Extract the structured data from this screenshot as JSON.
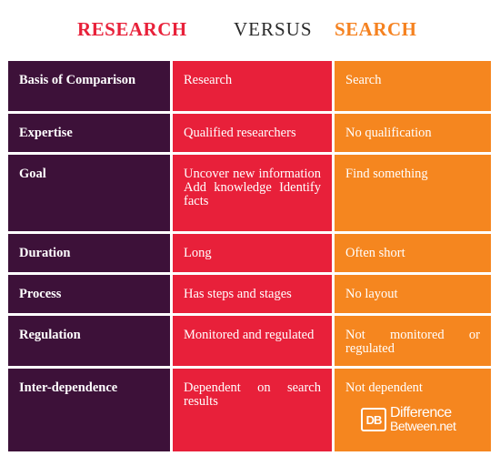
{
  "header": {
    "research": "RESEARCH",
    "versus": "VERSUS",
    "search": "SEARCH"
  },
  "table": {
    "columns": [
      "Basis of Comparison",
      "Research",
      "Search"
    ],
    "rows": [
      {
        "basis": "Expertise",
        "research": "Qualified researchers",
        "search": "No qualification"
      },
      {
        "basis": "Goal",
        "research": "Uncover new information Add knowledge Identify facts",
        "search": "Find something"
      },
      {
        "basis": "Duration",
        "research": "Long",
        "search": "Often short"
      },
      {
        "basis": "Process",
        "research": "Has steps and stages",
        "search": "No layout"
      },
      {
        "basis": "Regulation",
        "research": "Monitored and regulated",
        "search": "Not monitored or regulated"
      },
      {
        "basis": "Inter-dependence",
        "research": "Dependent on search results",
        "search": "Not dependent"
      }
    ]
  },
  "logo": {
    "mark": "DB",
    "line1": "Difference",
    "line2": "Between.net"
  },
  "colors": {
    "basis_column": "#3d1139",
    "research_column": "#e8203a",
    "search_column": "#f5861f",
    "research_title": "#e8213a",
    "search_title": "#f58220"
  }
}
